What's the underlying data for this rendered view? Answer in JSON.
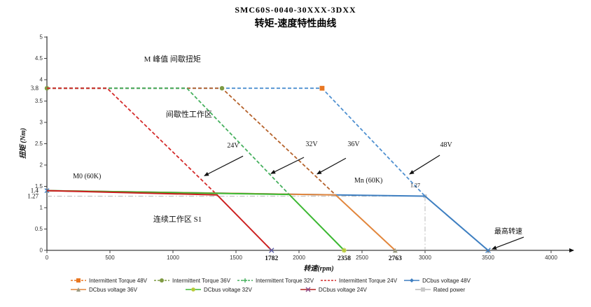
{
  "chart_data": {
    "type": "line",
    "title": "SMC60S-0040-30XXX-3DXX",
    "subtitle": "转矩-速度特性曲线",
    "xlabel": "转速(rpm)",
    "ylabel": "扭矩 (Nm)",
    "xlim": [
      0,
      4200
    ],
    "ylim": [
      0,
      5
    ],
    "x_ticks": [
      0,
      500,
      1000,
      1500,
      2000,
      2500,
      3000,
      3500,
      4000
    ],
    "x_special_ticks": [
      1782,
      2358,
      2763
    ],
    "y_ticks": [
      0,
      0.5,
      1,
      1.5,
      2,
      2.5,
      3,
      3.5,
      4,
      4.5,
      5
    ],
    "y_special_ticks": [
      3.8,
      1.4,
      1.27
    ],
    "series": [
      {
        "name": "Rated power",
        "style": "dashdot",
        "width": 1,
        "color": "#b9b9b9",
        "points": [
          [
            0,
            1.27
          ],
          [
            3000,
            1.27
          ]
        ],
        "markers": [
          {
            "shape": "square",
            "color": "#c9c9c9",
            "at": [
              3000,
              1.27
            ],
            "size": 2.6
          }
        ]
      },
      {
        "name": "Intermittent Torque 48V",
        "style": "dashed",
        "width": 1.8,
        "color": "#4f90d0",
        "points": [
          [
            0,
            3.8
          ],
          [
            2183,
            3.8
          ],
          [
            3000,
            1.27
          ]
        ],
        "markers": [
          {
            "shape": "square",
            "color": "#e87722",
            "at": [
              2183,
              3.8
            ],
            "size": 3.4
          }
        ]
      },
      {
        "name": "Intermittent Torque 36V",
        "style": "dashed",
        "width": 1.8,
        "color": "#b5622b",
        "points": [
          [
            0,
            3.8
          ],
          [
            1389,
            3.8
          ],
          [
            2290,
            1.3
          ]
        ],
        "markers": [
          {
            "shape": "circle",
            "color": "#7e9a43",
            "at": [
              0,
              3.8
            ],
            "size": 3.2
          },
          {
            "shape": "circle",
            "color": "#7e9a43",
            "at": [
              1389,
              3.8
            ],
            "size": 3.2
          }
        ]
      },
      {
        "name": "Intermittent Torque 32V",
        "style": "dashed",
        "width": 1.8,
        "color": "#46b05e",
        "points": [
          [
            0,
            3.8
          ],
          [
            1111,
            3.8
          ],
          [
            1922,
            1.31
          ]
        ],
        "markers": []
      },
      {
        "name": "Intermittent Torque 24V",
        "style": "dashed",
        "width": 1.8,
        "color": "#d42a2a",
        "points": [
          [
            0,
            3.8
          ],
          [
            478,
            3.8
          ],
          [
            1350,
            1.3
          ]
        ],
        "markers": []
      },
      {
        "name": "DCbus voltage 48V",
        "style": "solid",
        "width": 2,
        "color": "#3e7fc1",
        "points": [
          [
            0,
            1.4
          ],
          [
            3000,
            1.27
          ],
          [
            3500,
            0
          ]
        ],
        "markers": [
          {
            "shape": "x",
            "color": "#3e7fc1",
            "at": [
              0,
              1.4
            ],
            "size": 3
          },
          {
            "shape": "x",
            "color": "#3e7fc1",
            "at": [
              3500,
              0
            ],
            "size": 3.4
          }
        ]
      },
      {
        "name": "DCbus voltage 36V",
        "style": "solid",
        "width": 2,
        "color": "#e2863c",
        "points": [
          [
            0,
            1.4
          ],
          [
            2290,
            1.3
          ],
          [
            2763,
            0
          ]
        ],
        "markers": [
          {
            "shape": "triangle",
            "color": "#9b9b83",
            "at": [
              2763,
              0
            ],
            "size": 3.4
          }
        ]
      },
      {
        "name": "DCbus voltage 32V",
        "style": "solid",
        "width": 2,
        "color": "#3cb832",
        "points": [
          [
            0,
            1.4
          ],
          [
            1922,
            1.31
          ],
          [
            2358,
            0
          ]
        ],
        "markers": [
          {
            "shape": "star",
            "color": "#b6c832",
            "at": [
              2358,
              0
            ],
            "size": 3.6
          }
        ]
      },
      {
        "name": "DCbus voltage 24V",
        "style": "solid",
        "width": 2,
        "color": "#cc1f1f",
        "points": [
          [
            0,
            1.4
          ],
          [
            1350,
            1.3
          ],
          [
            1782,
            0
          ]
        ],
        "markers": [
          {
            "shape": "x",
            "color": "#5b5ea6",
            "at": [
              1782,
              0
            ],
            "size": 3.2
          }
        ]
      }
    ],
    "drop_line": {
      "x": 3000,
      "from": 1.27,
      "to": 0,
      "color": "#b9b9b9"
    },
    "annotations": [
      {
        "id": "peak-torque-label",
        "text": "M 峰值   间歇扭矩",
        "at": [
          770,
          4.43
        ],
        "anchor": "start",
        "size": 11,
        "bold": false
      },
      {
        "id": "intermittent-zone-label",
        "text": "间歇性工作区",
        "at": [
          944,
          3.13
        ],
        "anchor": "start",
        "size": 11,
        "bold": false
      },
      {
        "id": "label-24v",
        "text": "24V",
        "at": [
          1478,
          2.41
        ],
        "anchor": "middle",
        "size": 10,
        "bold": false
      },
      {
        "id": "label-32v",
        "text": "32V",
        "at": [
          2100,
          2.44
        ],
        "anchor": "middle",
        "size": 10,
        "bold": false
      },
      {
        "id": "label-36v",
        "text": "36V",
        "at": [
          2433,
          2.44
        ],
        "anchor": "middle",
        "size": 10,
        "bold": false
      },
      {
        "id": "label-48v",
        "text": "48V",
        "at": [
          3167,
          2.43
        ],
        "anchor": "middle",
        "size": 10,
        "bold": false
      },
      {
        "id": "m0-label",
        "text": "M0 (60K)",
        "at": [
          206,
          1.69
        ],
        "anchor": "start",
        "size": 10,
        "bold": false
      },
      {
        "id": "mn-label",
        "text": "Mn (60K)",
        "at": [
          2439,
          1.59
        ],
        "anchor": "start",
        "size": 10,
        "bold": false
      },
      {
        "id": "value-127-label",
        "text": "1.27",
        "at": [
          2883,
          1.48
        ],
        "anchor": "start",
        "size": 8,
        "bold": false
      },
      {
        "id": "continuous-zone-label",
        "text": "连续工作区 S1",
        "at": [
          844,
          0.67
        ],
        "anchor": "start",
        "size": 11,
        "bold": false
      },
      {
        "id": "max-speed-label",
        "text": "最高转速",
        "at": [
          3550,
          0.39
        ],
        "anchor": "start",
        "size": 10,
        "bold": false
      }
    ],
    "arrows": [
      {
        "from": [
          1556,
          2.21
        ],
        "to": [
          1250,
          1.75
        ]
      },
      {
        "from": [
          2039,
          2.18
        ],
        "to": [
          1778,
          1.8
        ]
      },
      {
        "from": [
          2372,
          2.16
        ],
        "to": [
          2144,
          1.79
        ]
      },
      {
        "from": [
          3117,
          2.23
        ],
        "to": [
          2878,
          1.79
        ]
      },
      {
        "from": [
          3783,
          0.31
        ],
        "to": [
          3533,
          0.03
        ]
      }
    ]
  },
  "legend": {
    "rows": [
      [
        {
          "label": "Intermittent Torque 48V",
          "color": "#e87722",
          "line": "dashed",
          "marker": "square",
          "marker_color": "#e87722"
        },
        {
          "label": "Intermittent Torque 36V",
          "color": "#7e9a43",
          "line": "dashed",
          "marker": "circle",
          "marker_color": "#7e9a43"
        },
        {
          "label": "Intermittent Torque 32V",
          "color": "#46b05e",
          "line": "dashed",
          "marker": "plus",
          "marker_color": "#46b05e"
        },
        {
          "label": "Intermittent Torque 24V",
          "color": "#d42a2a",
          "line": "dashed",
          "marker": "none",
          "marker_color": "#d42a2a"
        },
        {
          "label": "DCbus voltage 48V",
          "color": "#3e7fc1",
          "line": "solid",
          "marker": "diamond",
          "marker_color": "#3e7fc1"
        }
      ],
      [
        {
          "label": "DCbus voltage 36V",
          "color": "#e2863c",
          "line": "solid",
          "marker": "triangle",
          "marker_color": "#9b9b83"
        },
        {
          "label": "DCbus voltage 32V",
          "color": "#3cb832",
          "line": "solid",
          "marker": "star",
          "marker_color": "#b6c832"
        },
        {
          "label": "DCbus voltage 24V",
          "color": "#b22222",
          "line": "solid",
          "marker": "x",
          "marker_color": "#8a4a8a"
        },
        {
          "label": "Rated power",
          "color": "#b9b9b9",
          "line": "solid",
          "marker": "square",
          "marker_color": "#c9c9c9"
        }
      ]
    ]
  }
}
